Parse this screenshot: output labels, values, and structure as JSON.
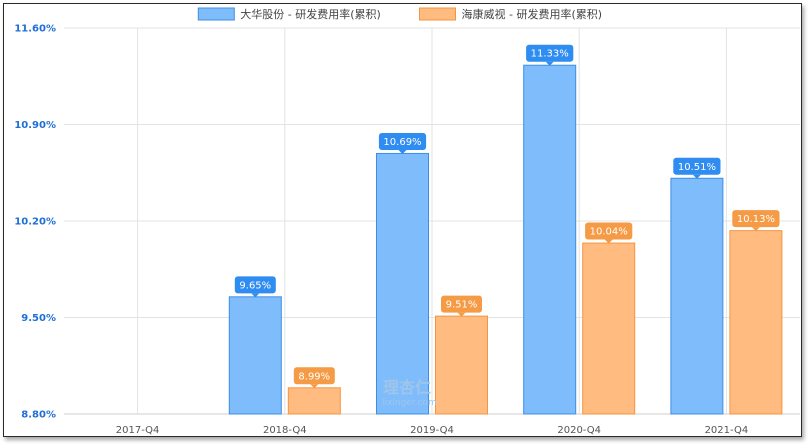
{
  "chart_data": {
    "type": "bar",
    "categories": [
      "2017-Q4",
      "2018-Q4",
      "2019-Q4",
      "2020-Q4",
      "2021-Q4"
    ],
    "series": [
      {
        "name": "大华股份 - 研发费用率(累积)",
        "color": "#7fbcfb",
        "border": "#3d8fe6",
        "label_bg": "#2f8cf0",
        "values": [
          null,
          9.65,
          10.69,
          11.33,
          10.51
        ],
        "labels": [
          "",
          "9.65%",
          "10.69%",
          "11.33%",
          "10.51%"
        ]
      },
      {
        "name": "海康威视 - 研发费用率(累积)",
        "color": "#ffbb80",
        "border": "#f5953f",
        "label_bg": "#f59a45",
        "values": [
          null,
          8.99,
          9.51,
          10.04,
          10.13
        ],
        "labels": [
          "",
          "8.99%",
          "9.51%",
          "10.04%",
          "10.13%"
        ]
      }
    ],
    "ylim": [
      8.8,
      11.6
    ],
    "yticks": [
      "8.80%",
      "9.50%",
      "10.20%",
      "10.90%",
      "11.60%"
    ],
    "grid": true,
    "legend_position": "top-center"
  },
  "watermark": {
    "title": "理杏仁",
    "sub": "lixinger.com"
  }
}
